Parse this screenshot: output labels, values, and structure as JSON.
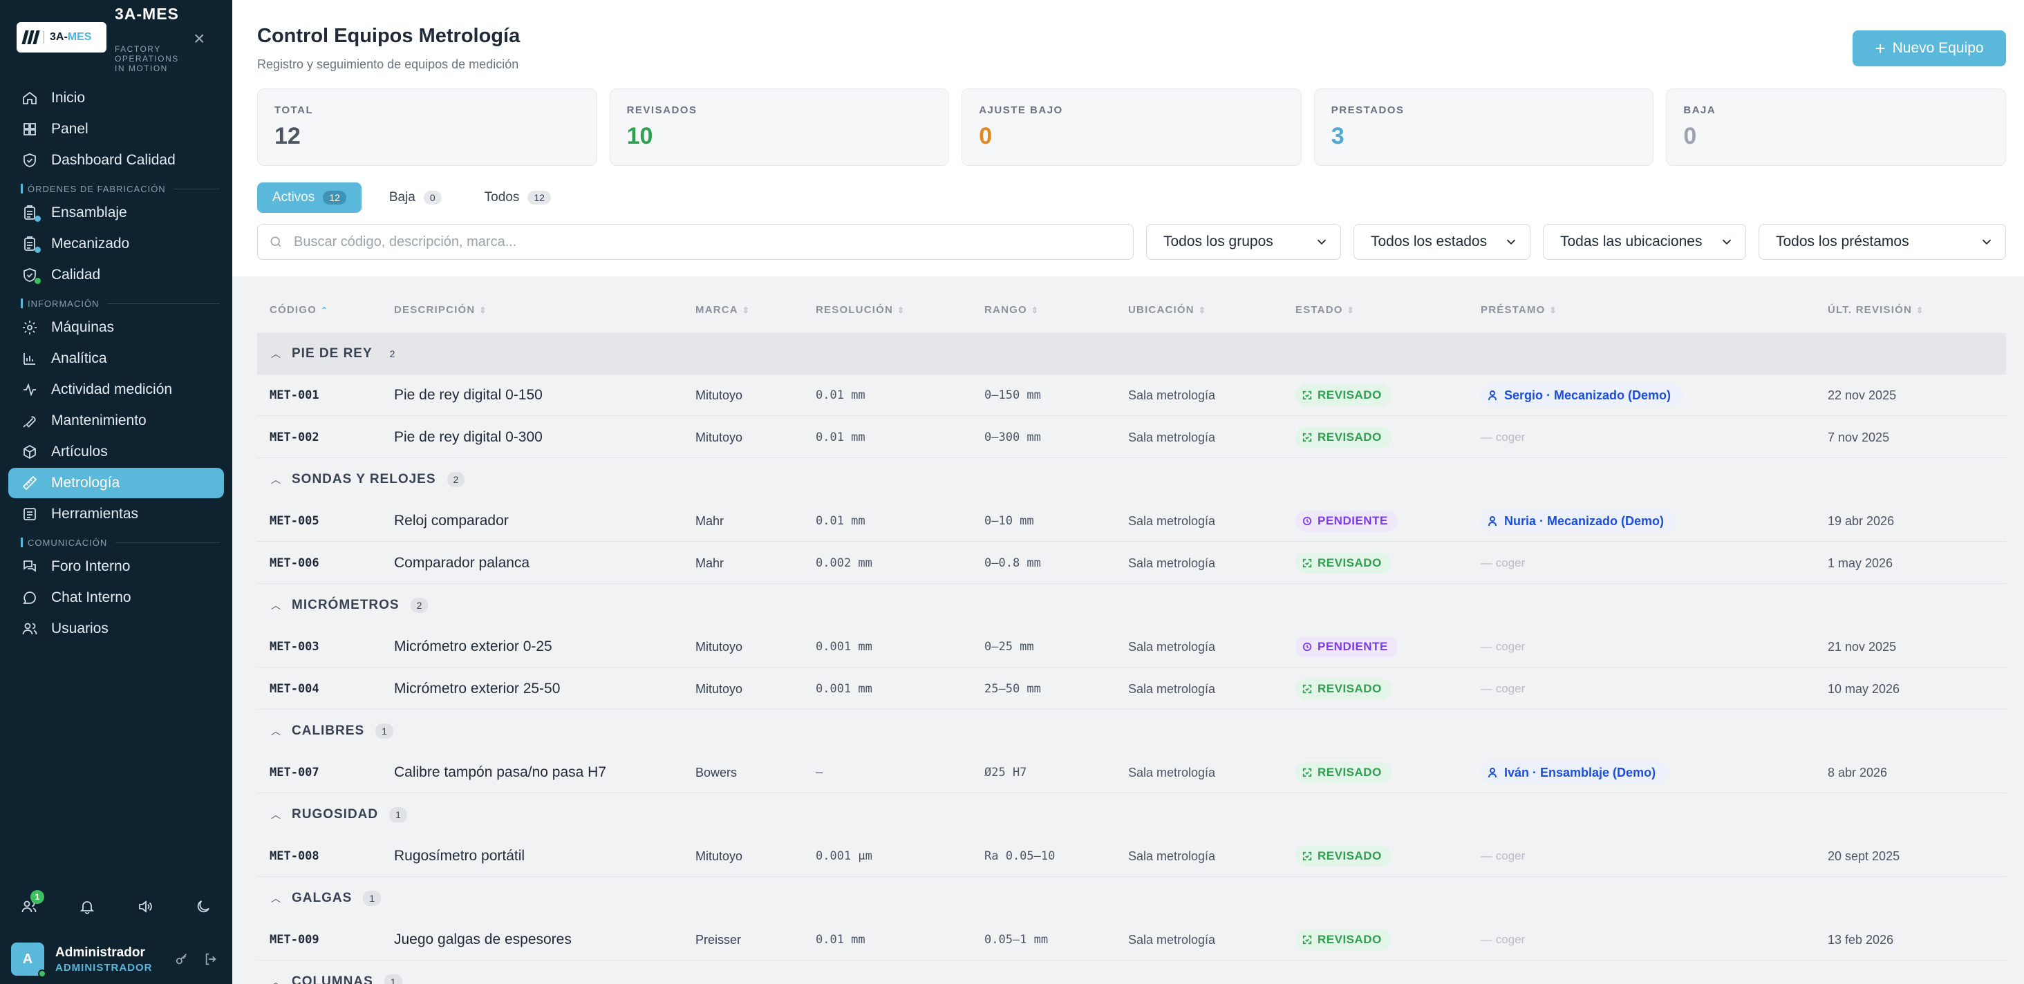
{
  "sidebar": {
    "logo_text_a": "3A-",
    "logo_text_b": "MES",
    "brand_name": "3A-MES",
    "brand_sub": "FACTORY OPERATIONS IN MOTION",
    "items_top": [
      {
        "label": "Inicio",
        "icon": "home-icon"
      },
      {
        "label": "Panel",
        "icon": "grid-icon"
      },
      {
        "label": "Dashboard Calidad",
        "icon": "shield-icon"
      }
    ],
    "section_orders": "ÓRDENES DE FABRICACIÓN",
    "items_orders": [
      {
        "label": "Ensamblaje",
        "icon": "clipboard-icon",
        "dot": "#5ab8db"
      },
      {
        "label": "Mecanizado",
        "icon": "clipboard-icon",
        "dot": "#5ab8db"
      },
      {
        "label": "Calidad",
        "icon": "shield-check-icon",
        "dot": "#3fbf5f"
      }
    ],
    "section_info": "INFORMACIÓN",
    "items_info": [
      {
        "label": "Máquinas",
        "icon": "gear-icon"
      },
      {
        "label": "Analítica",
        "icon": "bar-chart-icon"
      },
      {
        "label": "Actividad medición",
        "icon": "activity-icon"
      },
      {
        "label": "Mantenimiento",
        "icon": "wrench-icon"
      },
      {
        "label": "Artículos",
        "icon": "box-icon"
      },
      {
        "label": "Metrología",
        "icon": "ruler-icon",
        "active": true
      },
      {
        "label": "Herramientas",
        "icon": "list-icon"
      }
    ],
    "section_comm": "COMUNICACIÓN",
    "items_comm": [
      {
        "label": "Foro Interno",
        "icon": "forum-icon"
      },
      {
        "label": "Chat Interno",
        "icon": "chat-icon"
      },
      {
        "label": "Usuarios",
        "icon": "users-icon"
      }
    ],
    "users_badge": "1",
    "user": {
      "initial": "A",
      "name": "Administrador",
      "role": "ADMINISTRADOR"
    }
  },
  "header": {
    "title": "Control Equipos Metrología",
    "subtitle": "Registro y seguimiento de equipos de medición",
    "new_button": "Nuevo Equipo"
  },
  "stats": [
    {
      "label": "TOTAL",
      "value": "12",
      "color": "#4b5563"
    },
    {
      "label": "REVISADOS",
      "value": "10",
      "color": "#2e9e4f"
    },
    {
      "label": "AJUSTE BAJO",
      "value": "0",
      "color": "#e08a1e"
    },
    {
      "label": "PRESTADOS",
      "value": "3",
      "color": "#4fa8d2"
    },
    {
      "label": "BAJA",
      "value": "0",
      "color": "#9ca3af"
    }
  ],
  "tabs": [
    {
      "label": "Activos",
      "count": "12",
      "active": true
    },
    {
      "label": "Baja",
      "count": "0"
    },
    {
      "label": "Todos",
      "count": "12"
    }
  ],
  "filters": {
    "search_placeholder": "Buscar código, descripción, marca...",
    "grupos": "Todos los grupos",
    "estados": "Todos los estados",
    "ubicaciones": "Todas las ubicaciones",
    "prestamos": "Todos los préstamos"
  },
  "columns": {
    "codigo": "CÓDIGO",
    "descripcion": "DESCRIPCIÓN",
    "marca": "MARCA",
    "resolucion": "RESOLUCIÓN",
    "rango": "RANGO",
    "ubicacion": "UBICACIÓN",
    "estado": "ESTADO",
    "prestamo": "PRÉSTAMO",
    "ult_revision": "ÚLT. REVISIÓN"
  },
  "groups": [
    {
      "name": "PIE DE REY",
      "count": "2",
      "rows": [
        {
          "code": "MET-001",
          "desc": "Pie de rey digital 0-150",
          "marca": "Mitutoyo",
          "res": "0.01 mm",
          "rango": "0–150 mm",
          "ubi": "Sala metrología",
          "estado": "REVISADO",
          "loan": "Sergio · Mecanizado (Demo)",
          "rev": "22 nov 2025"
        },
        {
          "code": "MET-002",
          "desc": "Pie de rey digital 0-300",
          "marca": "Mitutoyo",
          "res": "0.01 mm",
          "rango": "0–300 mm",
          "ubi": "Sala metrología",
          "estado": "REVISADO",
          "loan": "",
          "rev": "7 nov 2025"
        }
      ]
    },
    {
      "name": "SONDAS Y RELOJES",
      "count": "2",
      "rows": [
        {
          "code": "MET-005",
          "desc": "Reloj comparador",
          "marca": "Mahr",
          "res": "0.01 mm",
          "rango": "0–10 mm",
          "ubi": "Sala metrología",
          "estado": "PENDIENTE",
          "loan": "Nuria · Mecanizado (Demo)",
          "rev": "19 abr 2026"
        },
        {
          "code": "MET-006",
          "desc": "Comparador palanca",
          "marca": "Mahr",
          "res": "0.002 mm",
          "rango": "0–0.8 mm",
          "ubi": "Sala metrología",
          "estado": "REVISADO",
          "loan": "",
          "rev": "1 may 2026"
        }
      ]
    },
    {
      "name": "MICRÓMETROS",
      "count": "2",
      "rows": [
        {
          "code": "MET-003",
          "desc": "Micrómetro exterior 0-25",
          "marca": "Mitutoyo",
          "res": "0.001 mm",
          "rango": "0–25 mm",
          "ubi": "Sala metrología",
          "estado": "PENDIENTE",
          "loan": "",
          "rev": "21 nov 2025"
        },
        {
          "code": "MET-004",
          "desc": "Micrómetro exterior 25-50",
          "marca": "Mitutoyo",
          "res": "0.001 mm",
          "rango": "25–50 mm",
          "ubi": "Sala metrología",
          "estado": "REVISADO",
          "loan": "",
          "rev": "10 may 2026"
        }
      ]
    },
    {
      "name": "CALIBRES",
      "count": "1",
      "rows": [
        {
          "code": "MET-007",
          "desc": "Calibre tampón pasa/no pasa H7",
          "marca": "Bowers",
          "res": "–",
          "rango": "Ø25 H7",
          "ubi": "Sala metrología",
          "estado": "REVISADO",
          "loan": "Iván · Ensamblaje (Demo)",
          "rev": "8 abr 2026"
        }
      ]
    },
    {
      "name": "RUGOSIDAD",
      "count": "1",
      "rows": [
        {
          "code": "MET-008",
          "desc": "Rugosímetro portátil",
          "marca": "Mitutoyo",
          "res": "0.001 µm",
          "rango": "Ra 0.05–10",
          "ubi": "Sala metrología",
          "estado": "REVISADO",
          "loan": "",
          "rev": "20 sept 2025"
        }
      ]
    },
    {
      "name": "GALGAS",
      "count": "1",
      "rows": [
        {
          "code": "MET-009",
          "desc": "Juego galgas de espesores",
          "marca": "Preisser",
          "res": "0.01 mm",
          "rango": "0.05–1 mm",
          "ubi": "Sala metrología",
          "estado": "REVISADO",
          "loan": "",
          "rev": "13 feb 2026"
        }
      ]
    },
    {
      "name": "COLUMNAS",
      "count": "1",
      "rows": []
    }
  ],
  "empty_loan_text": "— coger"
}
